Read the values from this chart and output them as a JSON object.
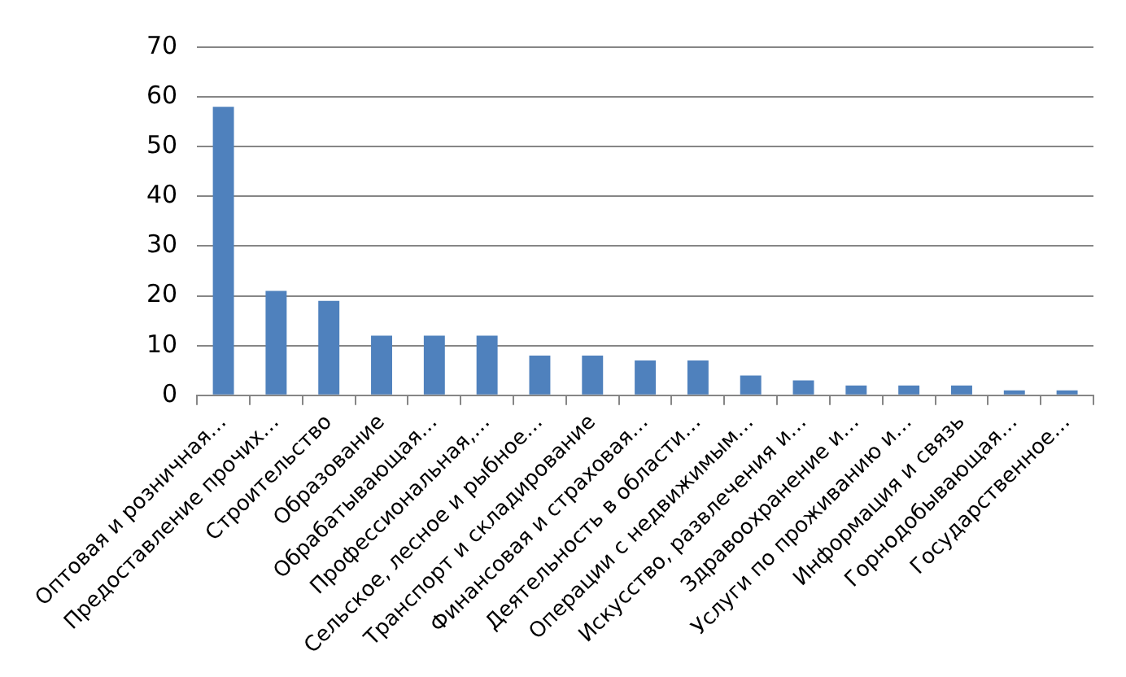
{
  "chart_data": {
    "type": "bar",
    "categories": [
      "Оптовая и розничная…",
      "Предоставление прочих…",
      "Строительство",
      "Образование",
      "Обрабатывающая…",
      "Профессиональная,…",
      "Сельское, лесное и рыбное…",
      "Транспорт и складирование",
      "Финансовая и страховая…",
      "Деятельность в области…",
      "Операции с недвижимым…",
      "Искусство, развлечения и…",
      "Здравоохранение и…",
      "Услуги по проживанию и…",
      "Информация и связь",
      "Горнодобывающая…",
      "Государственное…"
    ],
    "values": [
      58,
      21,
      19,
      12,
      12,
      12,
      8,
      8,
      7,
      7,
      4,
      3,
      2,
      2,
      2,
      1,
      1
    ],
    "color": "#4f81bd",
    "ylim": [
      0,
      70
    ],
    "yticks": [
      0,
      10,
      20,
      30,
      40,
      50,
      60,
      70
    ],
    "grid": "y",
    "legend": false
  }
}
